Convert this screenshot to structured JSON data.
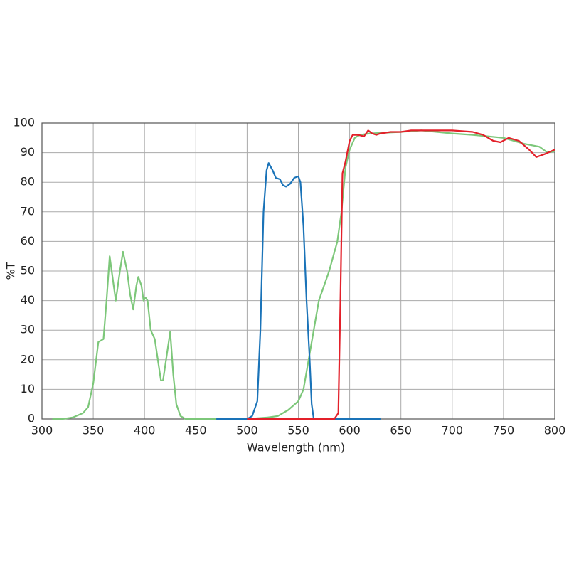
{
  "chart_data": {
    "type": "line",
    "xlabel": "Wavelength (nm)",
    "ylabel": "%T",
    "xlim": [
      300,
      800
    ],
    "xticks": [
      300,
      350,
      400,
      450,
      500,
      550,
      600,
      650,
      700,
      750,
      800
    ],
    "ylim": [
      0,
      100
    ],
    "yticks": [
      0,
      10,
      20,
      30,
      40,
      50,
      60,
      70,
      80,
      90,
      100
    ],
    "grid": true,
    "series": [
      {
        "color": "#7dc77a",
        "x": [
          310,
          320,
          330,
          340,
          345,
          350,
          355,
          360,
          363,
          366,
          370,
          372,
          376,
          379,
          383,
          386,
          389,
          392,
          394,
          397,
          399,
          401,
          403,
          406,
          410,
          413,
          416,
          418,
          421,
          425,
          428,
          431,
          435,
          440,
          450,
          500,
          520,
          530,
          540,
          550,
          555,
          560,
          565,
          570,
          580,
          588,
          592,
          596,
          600,
          605,
          610,
          620,
          650,
          670,
          700,
          720,
          750,
          770,
          785,
          793,
          800
        ],
        "values": [
          0,
          0,
          0.5,
          2,
          4,
          12,
          26,
          27,
          40,
          55,
          45,
          40,
          50,
          56.5,
          50,
          42,
          37,
          45,
          48,
          45,
          40,
          41,
          40,
          30,
          27,
          20,
          13,
          13,
          20,
          29.5,
          15,
          5,
          1,
          0,
          0,
          0,
          0.5,
          1,
          3,
          6,
          10,
          20,
          30,
          40,
          50,
          60,
          70,
          85,
          91,
          95,
          96,
          96.5,
          97,
          97.5,
          96.5,
          96,
          95,
          93,
          92,
          90,
          90.5
        ]
      },
      {
        "color": "#1a73b8",
        "x": [
          470,
          500,
          505,
          510,
          513,
          516,
          519,
          521,
          525,
          528,
          532,
          535,
          538,
          542,
          546,
          550,
          552,
          555,
          558,
          561,
          563,
          565,
          575,
          630
        ],
        "values": [
          0,
          0,
          1,
          6,
          30,
          70,
          84,
          86.5,
          84,
          81.5,
          81,
          79,
          78.5,
          79.5,
          81.5,
          82,
          80,
          65,
          40,
          20,
          5,
          0,
          0,
          0
        ]
      },
      {
        "color": "#e3202a",
        "x": [
          500,
          570,
          585,
          589,
          591,
          593,
          596,
          600,
          603,
          608,
          614,
          618,
          622,
          626,
          630,
          640,
          650,
          660,
          680,
          700,
          720,
          730,
          740,
          747,
          755,
          765,
          775,
          782,
          790,
          800
        ],
        "values": [
          0,
          0,
          0,
          2,
          40,
          83,
          87,
          94,
          96,
          96,
          95.5,
          97.5,
          96.5,
          96,
          96.5,
          97,
          97,
          97.5,
          97.5,
          97.5,
          97,
          96,
          94,
          93.5,
          95,
          94,
          91,
          88.5,
          89.5,
          91
        ]
      }
    ]
  }
}
